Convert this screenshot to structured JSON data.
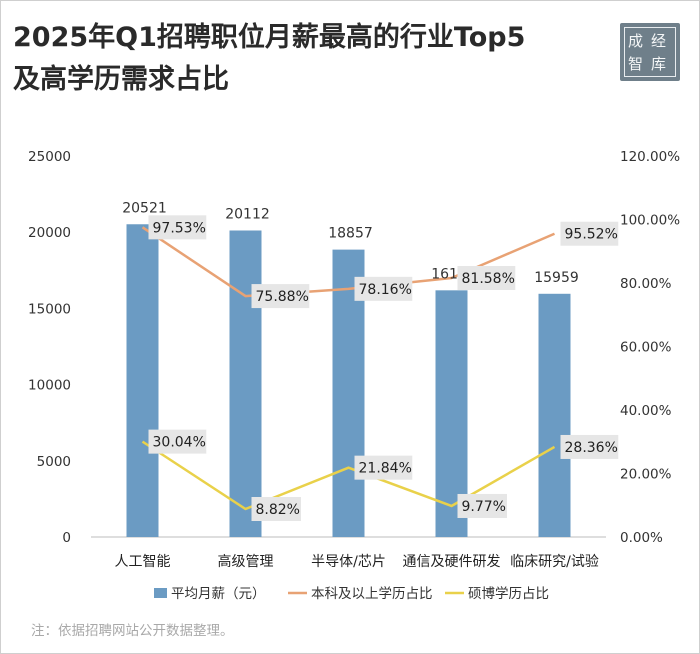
{
  "header": {
    "title_line1": "2025年Q1招聘职位月薪最高的行业Top5",
    "title_line2": "及高学历需求占比"
  },
  "logo": {
    "chars": [
      "成",
      "经",
      "智",
      "库"
    ]
  },
  "note": "注：依据招聘网站公开数据整理。",
  "colors": {
    "bar": "#6b9bc3",
    "bachelor": "#e8a274",
    "master": "#e9d14a",
    "label_bg": "#e6e6e6"
  },
  "chart_data": {
    "type": "bar",
    "categories": [
      "人工智能",
      "高级管理",
      "半导体/芯片",
      "通信及硬件研发",
      "临床研究/试验"
    ],
    "series": [
      {
        "name": "平均月薪（元）",
        "type": "bar",
        "axis": "left",
        "values": [
          20521,
          20112,
          18857,
          16186,
          15959
        ],
        "labels": [
          "20521",
          "20112",
          "18857",
          "16186",
          "15959"
        ]
      },
      {
        "name": "本科及以上学历占比",
        "type": "line",
        "axis": "right",
        "values": [
          97.53,
          75.88,
          78.16,
          81.58,
          95.52
        ],
        "labels": [
          "97.53%",
          "75.88%",
          "78.16%",
          "81.58%",
          "95.52%"
        ]
      },
      {
        "name": "硕博学历占比",
        "type": "line",
        "axis": "right",
        "values": [
          30.04,
          8.82,
          21.84,
          9.77,
          28.36
        ],
        "labels": [
          "30.04%",
          "8.82%",
          "21.84%",
          "9.77%",
          "28.36%"
        ]
      }
    ],
    "y_left": {
      "min": 0,
      "max": 25000,
      "ticks": [
        "0",
        "5000",
        "10000",
        "15000",
        "20000",
        "25000"
      ]
    },
    "y_right": {
      "min": 0,
      "max": 120,
      "ticks": [
        "0.00%",
        "20.00%",
        "40.00%",
        "60.00%",
        "80.00%",
        "100.00%",
        "120.00%"
      ]
    },
    "grid": false,
    "legend_position": "bottom"
  }
}
